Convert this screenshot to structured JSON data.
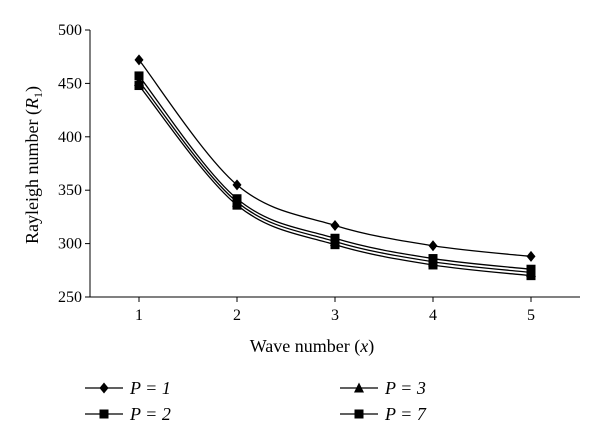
{
  "chart_data": {
    "type": "line",
    "x": [
      1,
      2,
      3,
      4,
      5
    ],
    "xlim": [
      0.5,
      5.5
    ],
    "ylim": [
      250,
      500
    ],
    "x_ticks": [
      "1",
      "2",
      "3",
      "4",
      "5"
    ],
    "y_ticks": [
      "250",
      "300",
      "350",
      "400",
      "450",
      "500"
    ],
    "xlabel": "Wave number (x)",
    "ylabel": "Rayleigh number (R1)",
    "grid": false,
    "legend_position": "bottom",
    "series": [
      {
        "name": "P = 1",
        "marker": "diamond",
        "values": [
          472,
          355,
          317,
          298,
          288
        ]
      },
      {
        "name": "P = 2",
        "marker": "square",
        "values": [
          457,
          342,
          305,
          286,
          276
        ]
      },
      {
        "name": "P = 3",
        "marker": "triangle",
        "values": [
          452,
          339,
          302,
          283,
          273
        ]
      },
      {
        "name": "P = 7",
        "marker": "square",
        "values": [
          448,
          336,
          299,
          280,
          270
        ]
      }
    ],
    "line_color": "#000000"
  }
}
